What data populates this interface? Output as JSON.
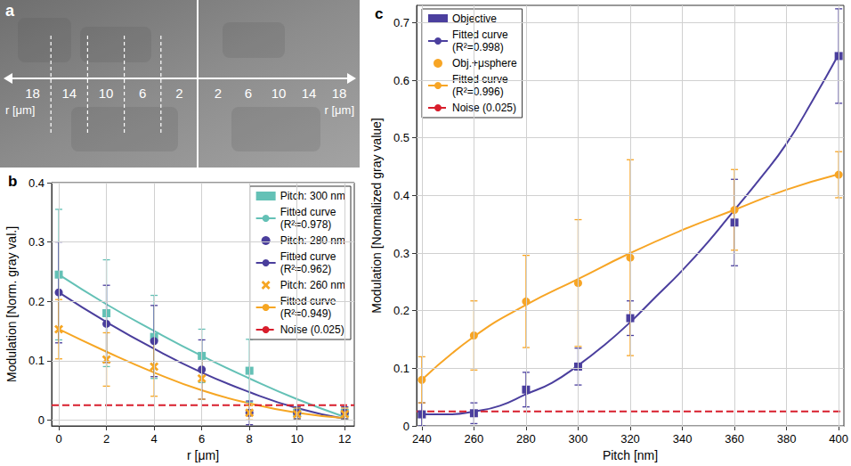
{
  "chart_data": [
    {
      "type": "image",
      "title": "a",
      "axis_label": "r [μm]",
      "left_ticks": [
        18,
        14,
        10,
        6,
        2
      ],
      "right_ticks": [
        2,
        6,
        10,
        14,
        18
      ]
    },
    {
      "type": "scatter",
      "title": "b",
      "x_label": "r [μm]",
      "y_label": "Modulation [Norm. gray val.]",
      "xlim": [
        -0.3,
        12.4
      ],
      "ylim": [
        -0.01,
        0.4
      ],
      "xticks": [
        0,
        2,
        4,
        6,
        8,
        10,
        12
      ],
      "yticks": [
        0,
        0.1,
        0.2,
        0.3,
        0.4
      ],
      "grid": true,
      "legend": "upper right",
      "series": [
        {
          "name": "Pitch: 300 nm",
          "type": "scatter",
          "marker": "square",
          "color": "#64c1b6",
          "x": [
            0,
            2,
            4,
            6,
            8,
            10,
            12
          ],
          "values": [
            0.245,
            0.18,
            0.14,
            0.108,
            0.083,
            0.012,
            0.012
          ],
          "errors": [
            0.11,
            0.09,
            0.07,
            0.045,
            0.053,
            0.01,
            0.01
          ]
        },
        {
          "name": "Fitted curve (R²=0.978)",
          "type": "line",
          "color": "#64c1b6",
          "x": [
            0,
            2,
            4,
            6,
            8,
            10,
            12
          ],
          "values": [
            0.245,
            0.195,
            0.15,
            0.108,
            0.07,
            0.035,
            0.005
          ]
        },
        {
          "name": "Pitch: 280 nm",
          "type": "scatter",
          "marker": "circle",
          "color": "#4a3e9c",
          "x": [
            0,
            2,
            4,
            6,
            8,
            10,
            12
          ],
          "values": [
            0.215,
            0.162,
            0.133,
            0.085,
            0.012,
            0.012,
            0.012
          ],
          "errors": [
            0.085,
            0.065,
            0.06,
            0.05,
            0.02,
            0.01,
            0.01
          ]
        },
        {
          "name": "Fitted curve (R²=0.962)",
          "type": "line",
          "color": "#4a3e9c",
          "x": [
            0,
            2,
            4,
            6,
            8,
            10,
            12
          ],
          "values": [
            0.215,
            0.165,
            0.12,
            0.08,
            0.047,
            0.02,
            0.002
          ]
        },
        {
          "name": "Pitch: 260 nm",
          "type": "scatter",
          "marker": "x",
          "color": "#f6a623",
          "x": [
            0,
            2,
            4,
            6,
            8,
            10,
            12
          ],
          "values": [
            0.153,
            0.102,
            0.09,
            0.07,
            0.012,
            0.01,
            0.01
          ],
          "errors": [
            0.05,
            0.045,
            0.05,
            0.035,
            0.012,
            0.01,
            0.01
          ]
        },
        {
          "name": "Fitted curve (R²=0.949)",
          "type": "line",
          "color": "#f6a623",
          "x": [
            0,
            2,
            4,
            6,
            8,
            10,
            12
          ],
          "values": [
            0.153,
            0.115,
            0.08,
            0.05,
            0.028,
            0.012,
            0.003
          ]
        },
        {
          "name": "Noise (0.025)",
          "type": "line",
          "line_style": "dashed",
          "color": "#d81e2c",
          "x": [
            -0.3,
            12.4
          ],
          "values": [
            0.025,
            0.025
          ]
        }
      ]
    },
    {
      "type": "scatter",
      "title": "c",
      "x_label": "Pitch [nm]",
      "y_label": "Modulation [Normalized gray value]",
      "xlim": [
        238,
        402
      ],
      "ylim": [
        0,
        0.73
      ],
      "xticks": [
        240,
        260,
        280,
        300,
        320,
        340,
        360,
        380,
        400
      ],
      "yticks": [
        0,
        0.1,
        0.2,
        0.3,
        0.4,
        0.5,
        0.6,
        0.7
      ],
      "grid": true,
      "legend": "upper left",
      "series": [
        {
          "name": "Objective",
          "type": "scatter",
          "marker": "square",
          "color": "#4b3f9e",
          "x": [
            240,
            260,
            280,
            300,
            320,
            360,
            400
          ],
          "values": [
            0.02,
            0.022,
            0.063,
            0.103,
            0.187,
            0.353,
            0.642
          ],
          "errors": [
            0.02,
            0.018,
            0.03,
            0.032,
            0.03,
            0.075,
            0.082
          ]
        },
        {
          "name": "Fitted curve (R²=0.998)",
          "type": "line",
          "color": "#4b3f9e",
          "x": [
            240,
            250,
            260,
            270,
            280,
            290,
            300,
            310,
            320,
            330,
            340,
            350,
            360,
            370,
            380,
            390,
            400
          ],
          "values": [
            0.02,
            0.02,
            0.025,
            0.035,
            0.055,
            0.075,
            0.105,
            0.14,
            0.18,
            0.225,
            0.27,
            0.32,
            0.375,
            0.43,
            0.49,
            0.565,
            0.645
          ]
        },
        {
          "name": "Obj.+μsphere",
          "type": "scatter",
          "marker": "circle",
          "color": "#f7a525",
          "x": [
            240,
            260,
            280,
            300,
            320,
            360,
            400
          ],
          "values": [
            0.08,
            0.157,
            0.216,
            0.248,
            0.292,
            0.375,
            0.436
          ],
          "errors": [
            0.04,
            0.06,
            0.08,
            0.11,
            0.17,
            0.07,
            0.04
          ]
        },
        {
          "name": "Fitted curve (R²=0.996)",
          "type": "line",
          "color": "#f7a525",
          "x": [
            240,
            260,
            280,
            300,
            320,
            340,
            360,
            380,
            400
          ],
          "values": [
            0.08,
            0.155,
            0.21,
            0.255,
            0.3,
            0.34,
            0.375,
            0.41,
            0.437
          ]
        },
        {
          "name": "Noise (0.025)",
          "type": "line",
          "line_style": "dashed",
          "color": "#d81e2c",
          "x": [
            238,
            402
          ],
          "values": [
            0.025,
            0.025
          ]
        }
      ]
    }
  ]
}
